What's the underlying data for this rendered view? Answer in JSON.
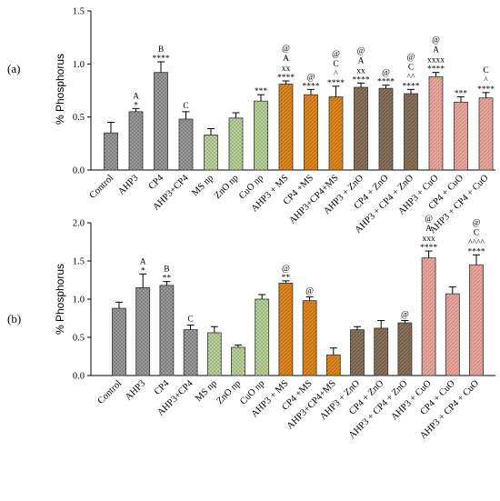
{
  "chart_data": [
    {
      "panel_label": "(a)",
      "type": "bar",
      "ylabel": "% Phosphorus",
      "ylim": [
        0,
        1.5
      ],
      "yticks": [
        "0.0",
        "0.5",
        "1.0",
        "1.5"
      ],
      "categories": [
        "Control",
        "AHP3",
        "CP4",
        "AHP3+CP4",
        "MS np",
        "ZnO np",
        "CuO np",
        "AHP3 + MS",
        "CP4 +MS",
        "AHP3+CP4+MS",
        "AHP3 + ZnO",
        "CP4 + ZnO",
        "AHP3 + CP4 + ZnO",
        "AHP3 + CuO",
        "CP4 + CuO",
        "AHP3 + CP4 + CuO"
      ],
      "values": [
        0.35,
        0.55,
        0.92,
        0.48,
        0.33,
        0.49,
        0.65,
        0.81,
        0.71,
        0.69,
        0.78,
        0.77,
        0.72,
        0.88,
        0.64,
        0.68
      ],
      "errors": [
        0.1,
        0.03,
        0.1,
        0.07,
        0.06,
        0.05,
        0.06,
        0.03,
        0.05,
        0.1,
        0.04,
        0.03,
        0.04,
        0.04,
        0.05,
        0.05
      ],
      "annotations": [
        [],
        [
          "A",
          "*"
        ],
        [
          "B",
          "****"
        ],
        [
          "C"
        ],
        [],
        [],
        [
          "***"
        ],
        [
          "@",
          "A",
          "xx",
          "****"
        ],
        [
          "@",
          "****"
        ],
        [
          "@",
          "C",
          "^",
          "****"
        ],
        [
          "@",
          "A",
          "xx",
          "****"
        ],
        [
          "@",
          "****"
        ],
        [
          "@",
          "C",
          "^^",
          "****"
        ],
        [
          "@",
          "A",
          "xxxx",
          "****"
        ],
        [
          "***"
        ],
        [
          "C",
          "^",
          "****"
        ]
      ],
      "group_colors": [
        "#a3a3a3",
        "#a3a3a3",
        "#a3a3a3",
        "#a3a3a3",
        "#c3d7a4",
        "#c3d7a4",
        "#c3d7a4",
        "#e08a1f",
        "#e08a1f",
        "#e08a1f",
        "#8b7560",
        "#8b7560",
        "#8b7560",
        "#e8a9a0",
        "#e8a9a0",
        "#e8a9a0"
      ],
      "grid": false
    },
    {
      "panel_label": "(b)",
      "type": "bar",
      "ylabel": "% Phosphorus",
      "ylim": [
        0,
        2.0
      ],
      "yticks": [
        "0.0",
        "0.5",
        "1.0",
        "1.5",
        "2.0"
      ],
      "categories": [
        "Control",
        "AHP3",
        "CP4",
        "AHP3+CP4",
        "MS np",
        "ZnO np",
        "CuO np",
        "AHP3 + MS",
        "CP4 +MS",
        "AHP3+CP4+MS",
        "AHP3 + ZnO",
        "CP4 + ZnO",
        "AHP3 + CP4 + ZnO",
        "AHP3 + CuO",
        "CP4 + CuO",
        "AHP3 + CP4 + CuO"
      ],
      "values": [
        0.88,
        1.15,
        1.18,
        0.6,
        0.56,
        0.37,
        1.0,
        1.21,
        0.98,
        0.27,
        0.6,
        0.62,
        0.69,
        1.54,
        1.07,
        1.45
      ],
      "errors": [
        0.08,
        0.18,
        0.05,
        0.06,
        0.08,
        0.03,
        0.06,
        0.03,
        0.05,
        0.09,
        0.04,
        0.1,
        0.03,
        0.09,
        0.09,
        0.13
      ],
      "annotations": [
        [],
        [
          "A",
          "*"
        ],
        [
          "B",
          "**"
        ],
        [
          "C"
        ],
        [],
        [],
        [],
        [
          "@",
          "**"
        ],
        [
          "@"
        ],
        [],
        [],
        [],
        [
          "@"
        ],
        [
          "@",
          "A",
          "xxx",
          "****"
        ],
        [],
        [
          "@",
          "C",
          "^^^^",
          "****"
        ]
      ],
      "group_colors": [
        "#a3a3a3",
        "#a3a3a3",
        "#a3a3a3",
        "#a3a3a3",
        "#c3d7a4",
        "#c3d7a4",
        "#c3d7a4",
        "#e08a1f",
        "#e08a1f",
        "#e08a1f",
        "#8b7560",
        "#8b7560",
        "#8b7560",
        "#e8a9a0",
        "#e8a9a0",
        "#e8a9a0"
      ],
      "grid": false
    }
  ]
}
